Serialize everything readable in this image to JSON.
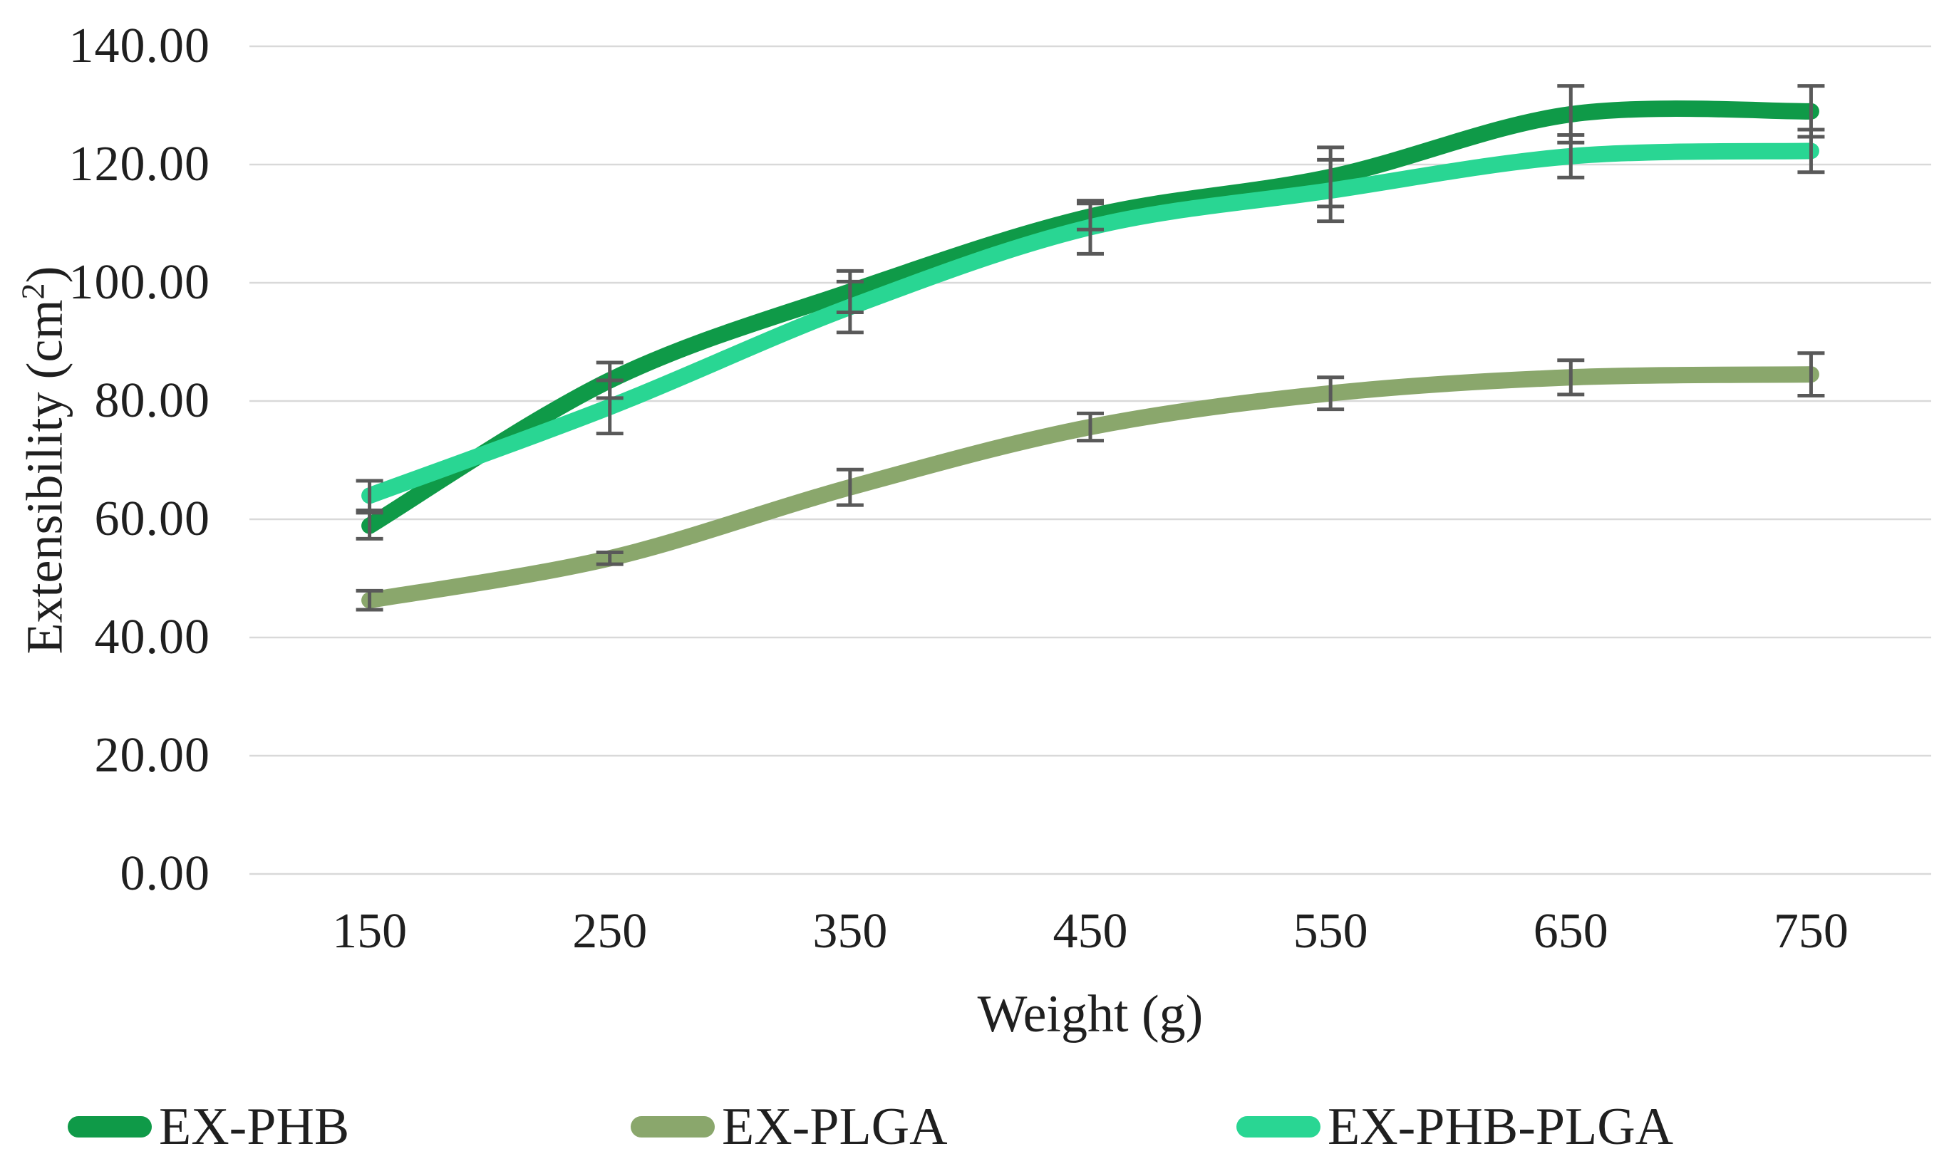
{
  "chart_data": {
    "type": "line",
    "title": "",
    "xlabel": "Weight (g)",
    "ylabel": "Extensibility (cm²)",
    "categories": [
      "150",
      "250",
      "350",
      "450",
      "550",
      "650",
      "750"
    ],
    "series": [
      {
        "name": "EX-PHB",
        "color": "#0F9A48",
        "values": [
          58.9,
          83.5,
          98.5,
          111.2,
          117.9,
          128.5,
          129.0
        ],
        "errors": [
          2.2,
          3.0,
          3.5,
          2.2,
          5.0,
          4.8,
          4.3
        ]
      },
      {
        "name": "EX-PLGA",
        "color": "#8AA76C",
        "values": [
          46.3,
          53.4,
          65.4,
          75.6,
          81.3,
          84.0,
          84.5
        ],
        "errors": [
          1.6,
          1.0,
          3.0,
          2.3,
          2.7,
          2.9,
          3.6
        ]
      },
      {
        "name": "EX-PHB-PLGA",
        "color": "#29D693",
        "values": [
          64.0,
          79.0,
          95.9,
          109.4,
          115.6,
          121.4,
          122.3
        ],
        "errors": [
          2.5,
          4.5,
          4.3,
          4.5,
          5.2,
          3.6,
          3.6
        ]
      }
    ],
    "ylim": [
      0,
      140
    ],
    "ytick_values": [
      140,
      120,
      100,
      80,
      60,
      40,
      20,
      0
    ],
    "ytick_labels": [
      "140.00",
      "120.00",
      "100.00",
      "80.00",
      "60.00",
      "40.00",
      "20.00",
      "0.00"
    ],
    "grid": true,
    "line_style": "smoothed",
    "error_bars": true,
    "legend_position": "bottom"
  },
  "colors": {
    "gridline": "#D9D9D9",
    "error_bar": "#595959",
    "text": "#1f1f1f",
    "background": "#ffffff"
  }
}
